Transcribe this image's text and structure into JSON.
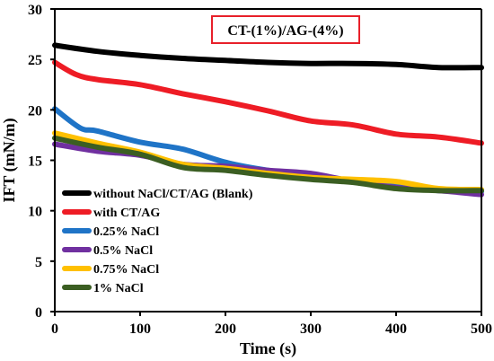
{
  "chart_data": {
    "type": "line",
    "annotation": "CT-(1%)/AG-(4%)",
    "annotation_border_color": "#e8202a",
    "xlabel": "Time (s)",
    "ylabel": "IFT (mN/m)",
    "xlim": [
      0,
      500
    ],
    "ylim": [
      0,
      30
    ],
    "xticks": [
      0,
      100,
      200,
      300,
      400,
      500
    ],
    "yticks": [
      0,
      5,
      10,
      15,
      20,
      25,
      30
    ],
    "grid": false,
    "legend_position": "lower-left",
    "series": [
      {
        "name": "without NaCl/CT/AG (Blank)",
        "color": "#000000",
        "x": [
          0,
          50,
          100,
          150,
          200,
          250,
          300,
          350,
          400,
          450,
          500
        ],
        "y": [
          26.4,
          25.8,
          25.4,
          25.1,
          24.9,
          24.7,
          24.6,
          24.6,
          24.5,
          24.2,
          24.2
        ]
      },
      {
        "name": "with CT/AG",
        "color": "#ee1c25",
        "x": [
          0,
          25,
          50,
          100,
          150,
          200,
          250,
          300,
          350,
          400,
          450,
          500
        ],
        "y": [
          24.7,
          23.5,
          23.0,
          22.5,
          21.6,
          20.8,
          19.9,
          18.9,
          18.5,
          17.6,
          17.3,
          16.7
        ]
      },
      {
        "name": "0.25% NaCl",
        "color": "#1f74c7",
        "x": [
          0,
          30,
          50,
          100,
          150,
          200,
          250,
          300,
          350,
          400,
          450,
          500
        ],
        "y": [
          20.1,
          18.2,
          17.9,
          16.8,
          16.1,
          14.8,
          14.0,
          13.5,
          12.9,
          12.4,
          12.0,
          11.9
        ]
      },
      {
        "name": "0.5% NaCl",
        "color": "#7030a0",
        "x": [
          0,
          50,
          100,
          150,
          200,
          250,
          300,
          350,
          400,
          450,
          500
        ],
        "y": [
          16.6,
          15.9,
          15.5,
          14.6,
          14.4,
          14.0,
          13.7,
          12.9,
          12.3,
          12.0,
          11.6
        ]
      },
      {
        "name": "0.75% NaCl",
        "color": "#ffc000",
        "x": [
          0,
          50,
          100,
          150,
          200,
          250,
          300,
          350,
          400,
          450,
          500
        ],
        "y": [
          17.7,
          16.7,
          15.8,
          14.6,
          14.2,
          13.7,
          13.3,
          13.1,
          12.9,
          12.2,
          12.1
        ]
      },
      {
        "name": "1% NaCl",
        "color": "#3b5e22",
        "x": [
          0,
          50,
          100,
          150,
          200,
          250,
          300,
          350,
          400,
          450,
          500
        ],
        "y": [
          17.2,
          16.3,
          15.6,
          14.3,
          14.0,
          13.5,
          13.1,
          12.8,
          12.2,
          12.0,
          12.0
        ]
      }
    ]
  }
}
